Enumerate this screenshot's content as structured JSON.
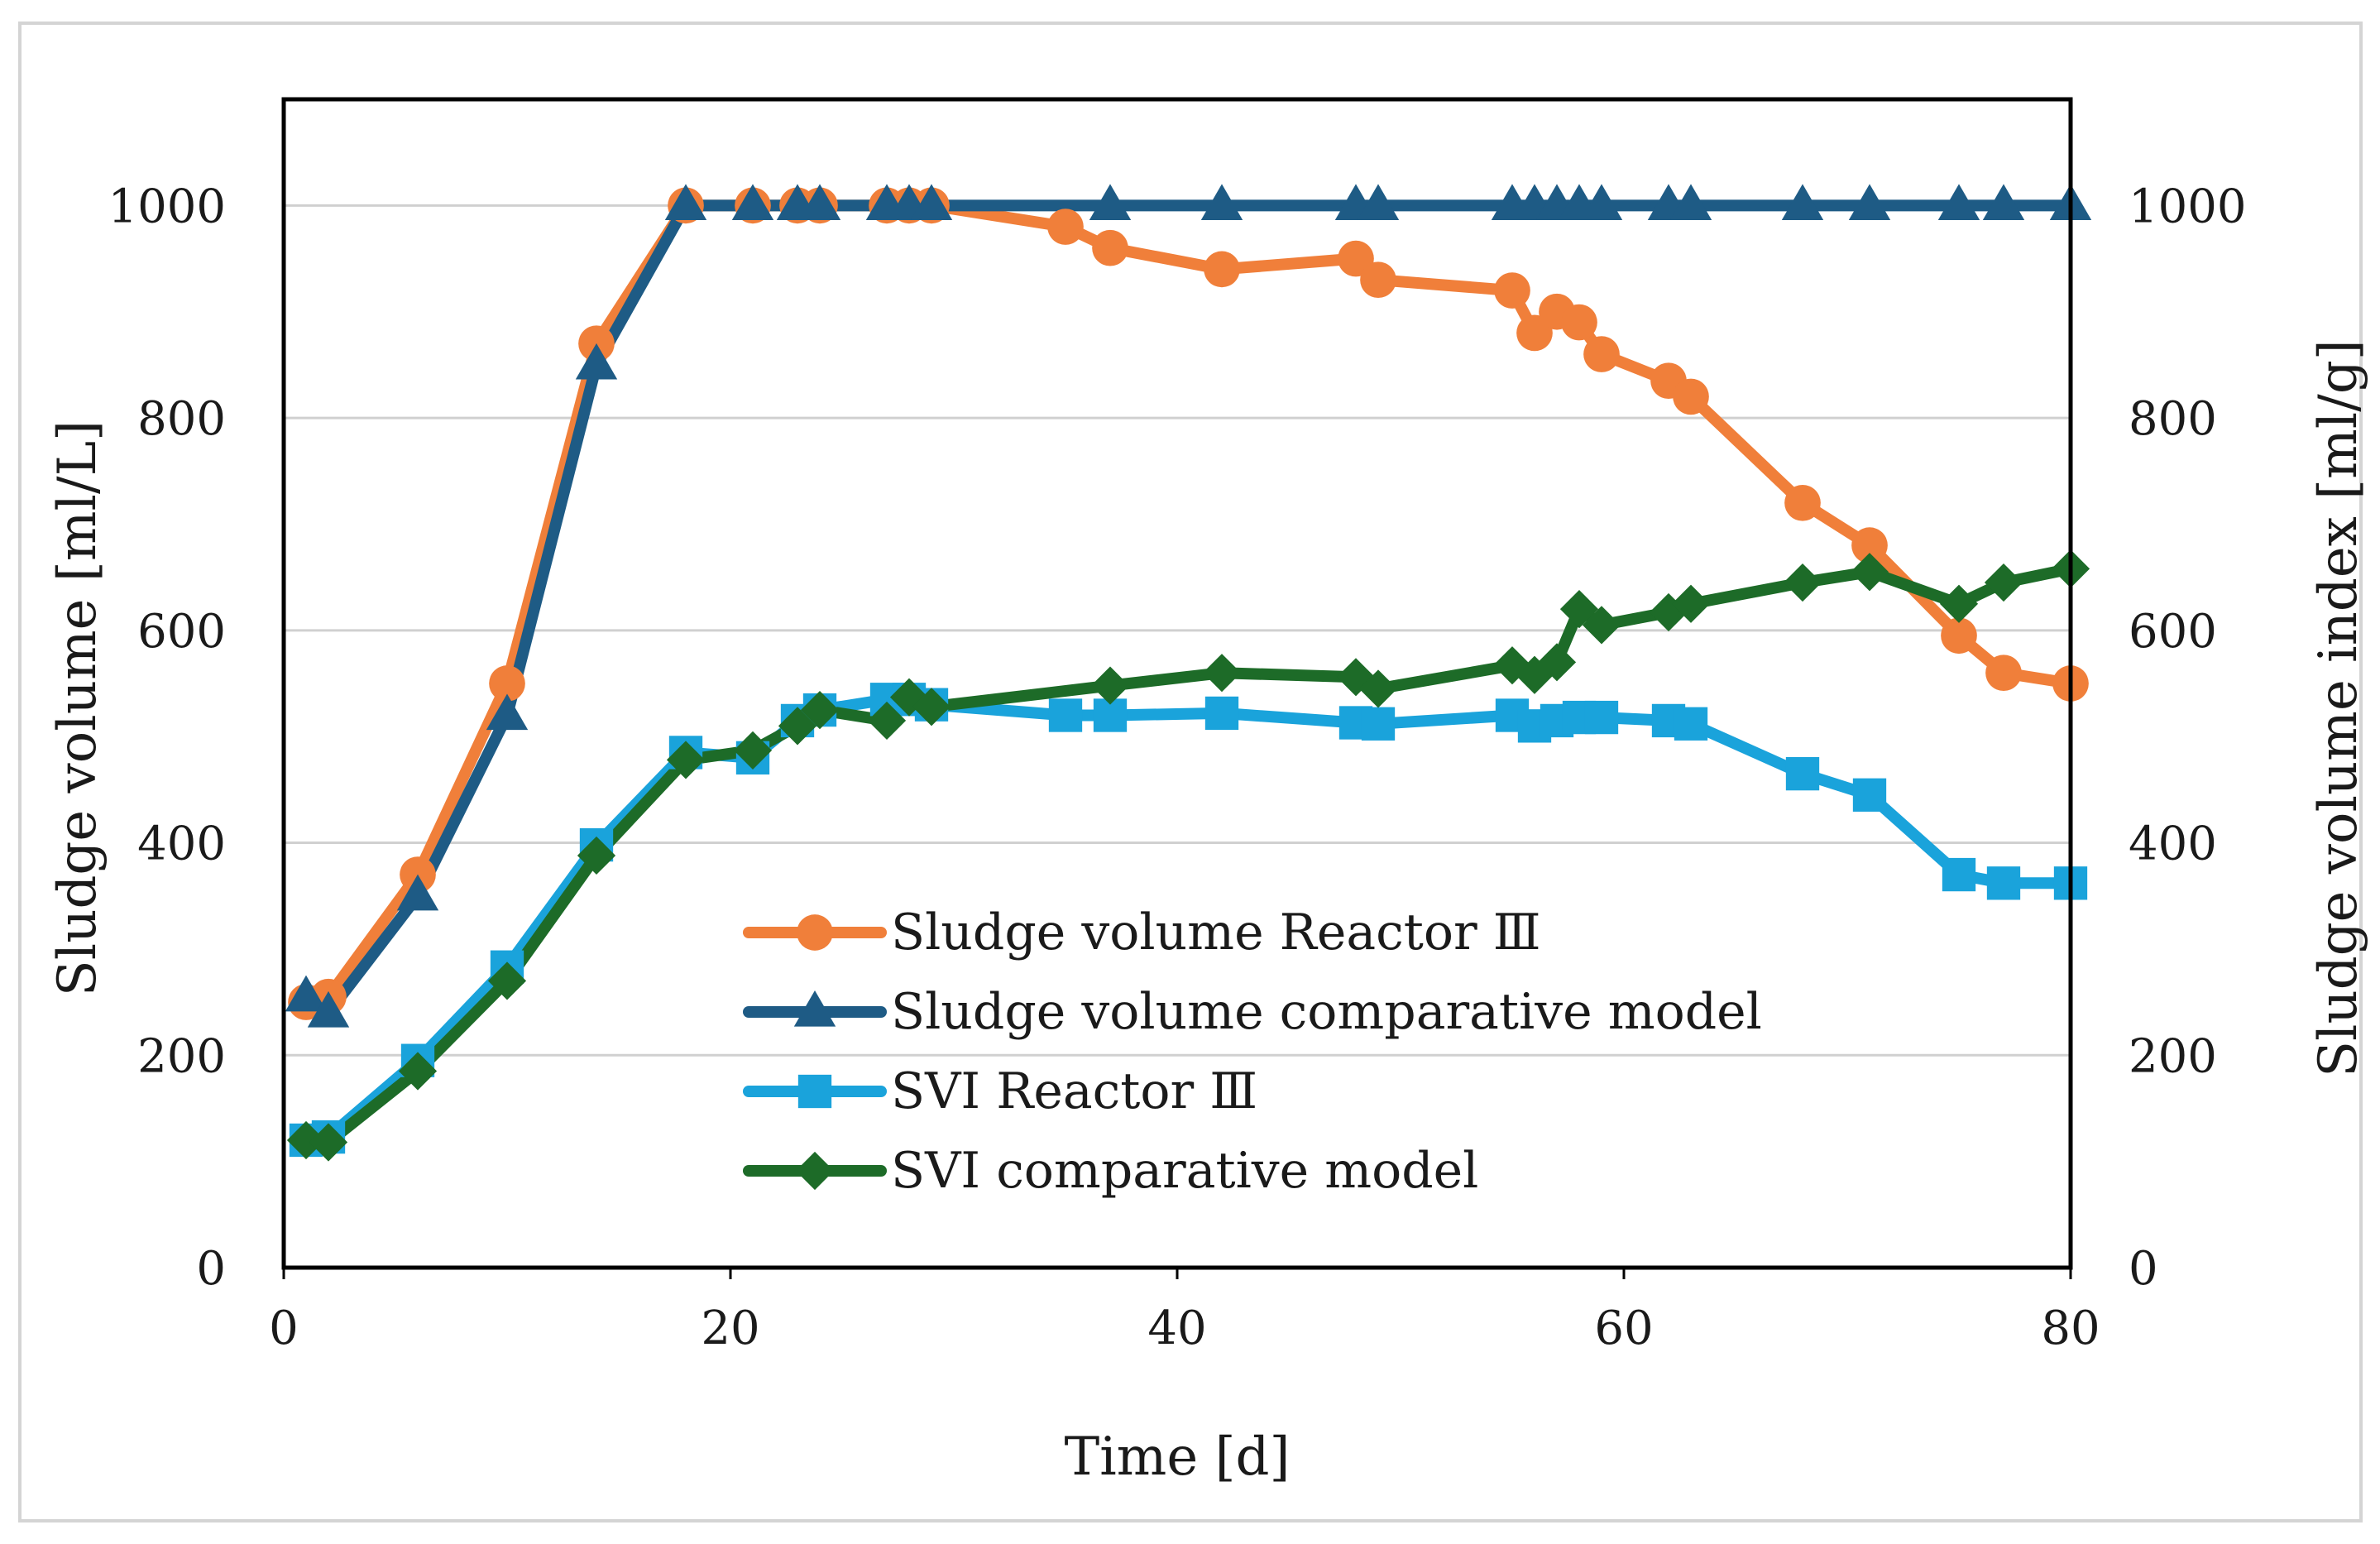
{
  "chart_data": {
    "type": "line",
    "xlabel": "Time [d]",
    "ylabel": "Sludge volume [ml/L]",
    "y2label": "Sludge volume index [ml/g]",
    "xlim": [
      0,
      80
    ],
    "ylim": [
      0,
      1100
    ],
    "y2lim": [
      0,
      1100
    ],
    "x_ticks": [
      0,
      20,
      40,
      60,
      80
    ],
    "y_ticks": [
      0,
      200,
      400,
      600,
      800,
      1000
    ],
    "y2_ticks": [
      0,
      200,
      400,
      600,
      800,
      1000
    ],
    "grid": "horizontal",
    "legend_position": "lower-center",
    "series": [
      {
        "name": "Sludge volume Reactor Ⅲ",
        "axis": "left",
        "color": "#F07F3A",
        "marker": "circle",
        "points": [
          [
            1,
            250
          ],
          [
            2,
            255
          ],
          [
            6,
            370
          ],
          [
            10,
            550
          ],
          [
            14,
            870
          ],
          [
            18,
            1000
          ],
          [
            21,
            1000
          ],
          [
            23,
            1000
          ],
          [
            24,
            1000
          ],
          [
            27,
            1000
          ],
          [
            28,
            1000
          ],
          [
            29,
            1000
          ],
          [
            35,
            980
          ],
          [
            37,
            960
          ],
          [
            42,
            940
          ],
          [
            48,
            950
          ],
          [
            49,
            930
          ],
          [
            55,
            920
          ],
          [
            56,
            880
          ],
          [
            57,
            900
          ],
          [
            58,
            890
          ],
          [
            59,
            860
          ],
          [
            62,
            835
          ],
          [
            63,
            820
          ],
          [
            68,
            720
          ],
          [
            71,
            680
          ],
          [
            75,
            595
          ],
          [
            77,
            560
          ],
          [
            80,
            550
          ]
        ]
      },
      {
        "name": "Sludge volume comparative model",
        "axis": "left",
        "color": "#1E5B85",
        "marker": "triangle",
        "points": [
          [
            1,
            255
          ],
          [
            2,
            240
          ],
          [
            6,
            350
          ],
          [
            10,
            520
          ],
          [
            14,
            850
          ],
          [
            18,
            1000
          ],
          [
            21,
            1000
          ],
          [
            23,
            1000
          ],
          [
            24,
            1000
          ],
          [
            27,
            1000
          ],
          [
            28,
            1000
          ],
          [
            29,
            1000
          ],
          [
            37,
            1000
          ],
          [
            42,
            1000
          ],
          [
            48,
            1000
          ],
          [
            49,
            1000
          ],
          [
            55,
            1000
          ],
          [
            56,
            1000
          ],
          [
            57,
            1000
          ],
          [
            58,
            1000
          ],
          [
            59,
            1000
          ],
          [
            62,
            1000
          ],
          [
            63,
            1000
          ],
          [
            68,
            1000
          ],
          [
            71,
            1000
          ],
          [
            75,
            1000
          ],
          [
            77,
            1000
          ],
          [
            80,
            1000
          ]
        ]
      },
      {
        "name": "SVI Reactor Ⅲ",
        "axis": "right",
        "color": "#1AA3DB",
        "marker": "square",
        "points": [
          [
            1,
            120
          ],
          [
            2,
            123
          ],
          [
            6,
            195
          ],
          [
            10,
            283
          ],
          [
            14,
            398
          ],
          [
            18,
            485
          ],
          [
            21,
            480
          ],
          [
            23,
            515
          ],
          [
            24,
            525
          ],
          [
            27,
            535
          ],
          [
            28,
            535
          ],
          [
            29,
            530
          ],
          [
            35,
            520
          ],
          [
            37,
            520
          ],
          [
            42,
            522
          ],
          [
            48,
            513
          ],
          [
            49,
            512
          ],
          [
            55,
            520
          ],
          [
            56,
            510
          ],
          [
            57,
            515
          ],
          [
            58,
            518
          ],
          [
            59,
            518
          ],
          [
            62,
            515
          ],
          [
            63,
            512
          ],
          [
            68,
            465
          ],
          [
            71,
            445
          ],
          [
            75,
            370
          ],
          [
            77,
            362
          ],
          [
            80,
            362
          ]
        ]
      },
      {
        "name": "SVI comparative model",
        "axis": "right",
        "color": "#1D6B28",
        "marker": "diamond",
        "points": [
          [
            1,
            120
          ],
          [
            2,
            118
          ],
          [
            6,
            185
          ],
          [
            10,
            270
          ],
          [
            14,
            388
          ],
          [
            18,
            478
          ],
          [
            21,
            487
          ],
          [
            23,
            510
          ],
          [
            24,
            525
          ],
          [
            27,
            515
          ],
          [
            28,
            537
          ],
          [
            29,
            528
          ],
          [
            37,
            548
          ],
          [
            42,
            560
          ],
          [
            48,
            556
          ],
          [
            49,
            545
          ],
          [
            55,
            567
          ],
          [
            56,
            558
          ],
          [
            57,
            570
          ],
          [
            58,
            620
          ],
          [
            59,
            605
          ],
          [
            62,
            617
          ],
          [
            63,
            625
          ],
          [
            68,
            645
          ],
          [
            71,
            655
          ],
          [
            75,
            625
          ],
          [
            77,
            645
          ],
          [
            80,
            658
          ]
        ]
      }
    ]
  }
}
